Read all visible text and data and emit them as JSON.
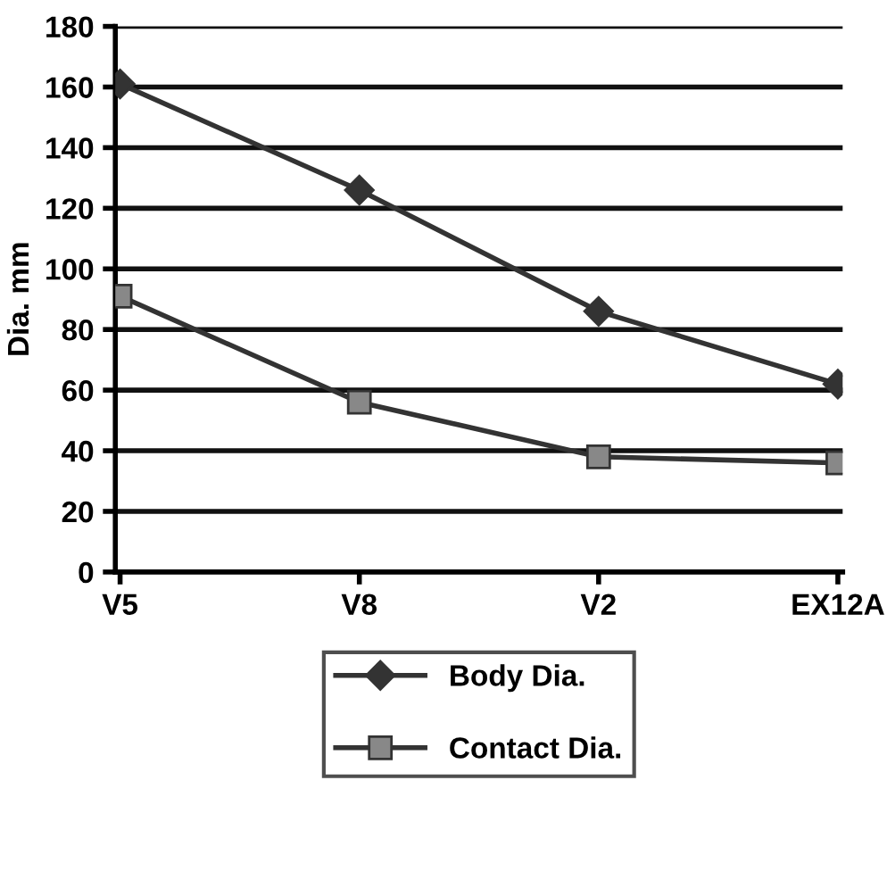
{
  "chart_data": {
    "type": "line",
    "ylabel": "Dia. mm",
    "categories": [
      "V5",
      "V8",
      "V2",
      "EX12A"
    ],
    "series": [
      {
        "name": "Body Dia.",
        "color": "#333333",
        "marker": "diamond",
        "values": [
          161,
          126,
          86,
          62
        ]
      },
      {
        "name": "Contact Dia.",
        "color": "#333333",
        "marker": "square",
        "values": [
          91,
          56,
          38,
          36
        ]
      }
    ],
    "ylim": [
      0,
      180
    ],
    "yticks": [
      0,
      20,
      40,
      60,
      80,
      100,
      120,
      140,
      160,
      180
    ],
    "grid": "y",
    "legend": "bottom",
    "line_style": "solid"
  }
}
